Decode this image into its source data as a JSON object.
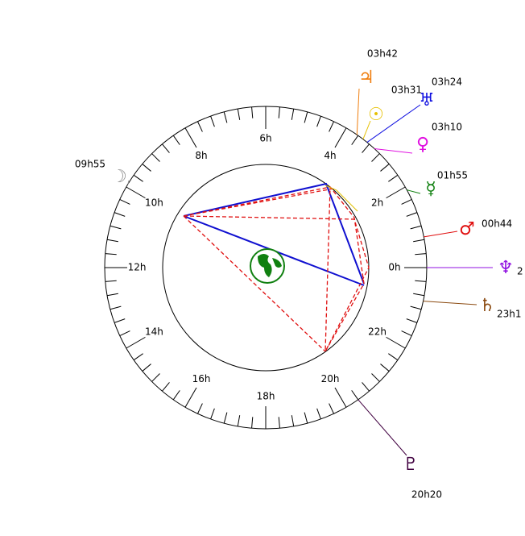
{
  "hour_labels": [
    "0h",
    "2h",
    "4h",
    "6h",
    "8h",
    "10h",
    "12h",
    "14h",
    "16h",
    "18h",
    "20h",
    "22h"
  ],
  "planets": [
    {
      "symbol": "♃",
      "label": "03h42",
      "color": "#f07f10"
    },
    {
      "symbol": "☉",
      "label": "03h31",
      "color": "#e6c000"
    },
    {
      "symbol": "♅",
      "label": "03h24",
      "color": "#1010e0"
    },
    {
      "symbol": "♀",
      "label": "03h10",
      "color": "#e010e0"
    },
    {
      "symbol": "☿",
      "label": "01h55",
      "color": "#108010"
    },
    {
      "symbol": "♂",
      "label": "00h44",
      "color": "#e01010"
    },
    {
      "symbol": "♆",
      "label": "2",
      "color": "#9010e0"
    },
    {
      "symbol": "♄",
      "label": "23h1",
      "color": "#8b4a10"
    },
    {
      "symbol": "☽",
      "label": "09h55",
      "color": "#909090"
    },
    {
      "symbol": "♇",
      "label": "20h20",
      "color": "#400040"
    }
  ]
}
